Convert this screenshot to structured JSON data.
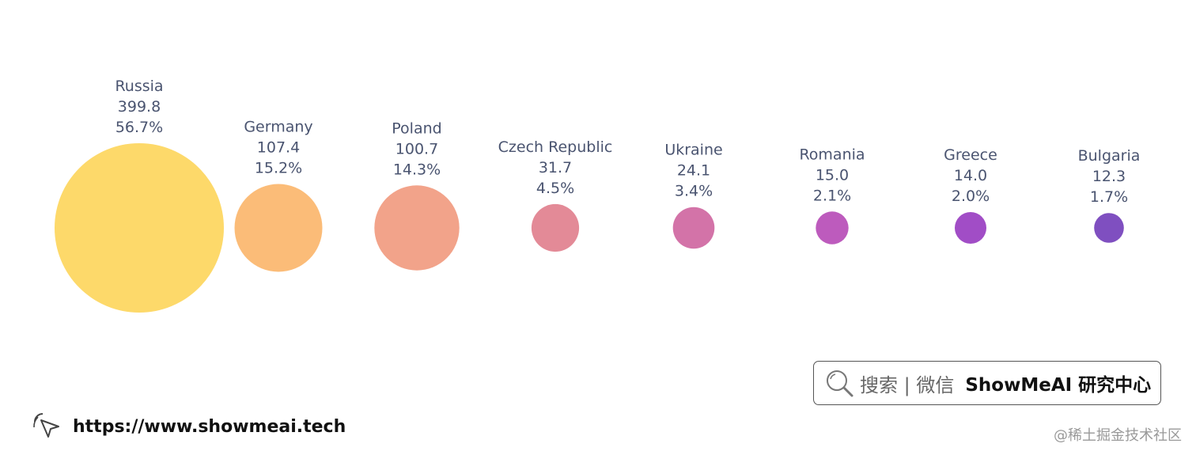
{
  "chart_data": {
    "type": "bubble",
    "categories": [
      "Russia",
      "Germany",
      "Poland",
      "Czech Republic",
      "Ukraine",
      "Romania",
      "Greece",
      "Bulgaria"
    ],
    "values": [
      399.8,
      107.4,
      100.7,
      31.7,
      24.1,
      15.0,
      14.0,
      12.3
    ],
    "value_labels": [
      "399.8",
      "107.4",
      "100.7",
      "31.7",
      "24.1",
      "15.0",
      "14.0",
      "12.3"
    ],
    "percents": [
      "56.7%",
      "15.2%",
      "14.3%",
      "4.5%",
      "3.4%",
      "2.1%",
      "2.0%",
      "1.7%"
    ],
    "colors": [
      "#fdd96a",
      "#fbbc78",
      "#f2a38a",
      "#e38a97",
      "#d373a8",
      "#bd5bbd",
      "#a14dc6",
      "#7f4fc0"
    ]
  },
  "search": {
    "icon": "search-icon",
    "text": "搜索 | 微信",
    "brand": "ShowMeAI 研究中心"
  },
  "footer": {
    "icon": "cursor-click-icon",
    "url": "https://www.showmeai.tech",
    "watermark": "@稀土掘金技术社区"
  }
}
